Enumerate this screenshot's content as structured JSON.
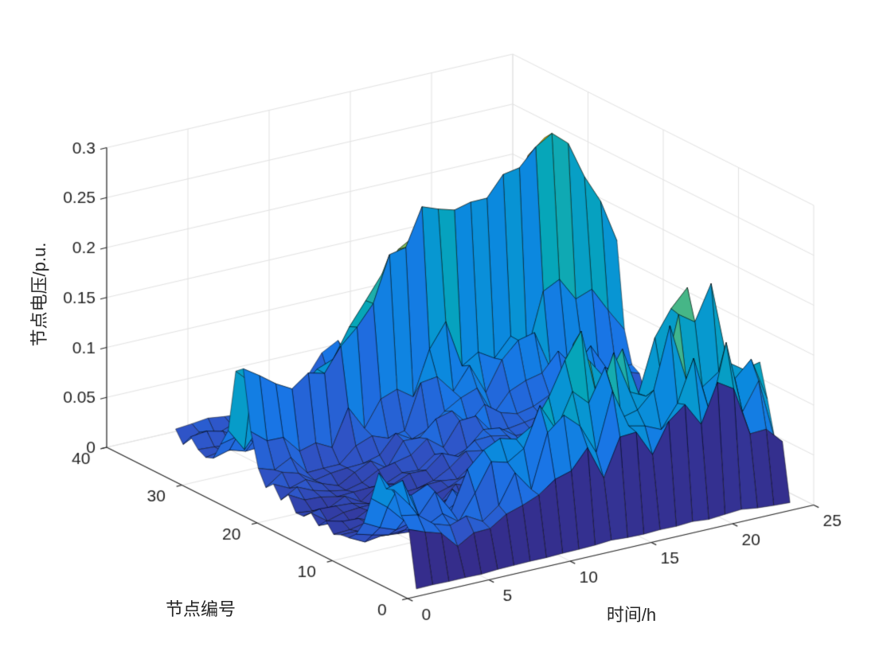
{
  "figure": {
    "background": "#ffffff"
  },
  "chart_data": {
    "type": "surface",
    "note": "MATLAB-style 3D surf mesh: node voltage deviation versus node index and hour of day; parula colormap, black mesh edges, default 3D view",
    "title": "",
    "xlabel": "时间/h",
    "ylabel": "节点编号",
    "zlabel": "节点电压/p.u.",
    "xlim": [
      0,
      25
    ],
    "ylim": [
      0,
      40
    ],
    "zlim": [
      0,
      0.3
    ],
    "x_ticks": [
      0,
      5,
      10,
      15,
      20,
      25
    ],
    "x_tick_labels": [
      "0",
      "5",
      "10",
      "15",
      "20",
      "25"
    ],
    "y_ticks": [
      0,
      10,
      20,
      30,
      40
    ],
    "y_tick_labels": [
      "0",
      "10",
      "20",
      "30",
      "40"
    ],
    "z_ticks": [
      0,
      0.05,
      0.1,
      0.15,
      0.2,
      0.25,
      0.3
    ],
    "z_tick_labels": [
      "0",
      "0.05",
      "0.1",
      "0.15",
      "0.2",
      "0.25",
      "0.3"
    ],
    "hours": [
      1,
      2,
      3,
      4,
      5,
      6,
      7,
      8,
      9,
      10,
      11,
      12,
      13,
      14,
      15,
      16,
      17,
      18,
      19,
      20,
      21,
      22,
      23,
      24
    ],
    "nodes": [
      1,
      2,
      3,
      4,
      5,
      6,
      7,
      8,
      9,
      10,
      11,
      12,
      13,
      14,
      15,
      16,
      17,
      18,
      19,
      20,
      21,
      22,
      23,
      24,
      25,
      26,
      27,
      28,
      29,
      30,
      31,
      32,
      33
    ],
    "hour_profile": [
      0.14,
      0.126,
      0.115,
      0.11,
      0.11,
      0.118,
      0.134,
      0.155,
      0.178,
      0.204,
      0.23,
      0.252,
      0.262,
      0.25,
      0.238,
      0.246,
      0.262,
      0.278,
      0.291,
      0.3,
      0.288,
      0.258,
      0.212,
      0.17
    ],
    "node_amplitude": [
      0.02,
      0.35,
      0.45,
      0.55,
      0.6,
      0.55,
      0.4,
      0.25,
      0.15,
      0.12,
      0.12,
      0.13,
      0.14,
      0.15,
      0.15,
      0.16,
      0.17,
      0.18,
      0.2,
      0.22,
      0.26,
      0.33,
      0.45,
      1.0,
      0.92,
      0.45,
      0.35,
      0.3,
      0.27,
      0.26,
      0.27,
      0.29,
      0.32
    ],
    "z_model": "z[node][hour] = node_amplitude[node] * hour_profile[hour] * jitter(node,hour); peak about 0.30 p.u. at node 24, hour 20",
    "noise": {
      "threshold": 0.7,
      "high_amp_jitter": 0.06,
      "low_amp_jitter": 0.3
    },
    "grid": true,
    "grid_color": "#e2e2e2",
    "axis_color": "#262626",
    "background": "#ffffff",
    "colormap": "parula",
    "colormap_stops": [
      [
        0.0,
        "#352a87"
      ],
      [
        0.1,
        "#2f55c8"
      ],
      [
        0.2,
        "#1b73e6"
      ],
      [
        0.3,
        "#0c87e0"
      ],
      [
        0.4,
        "#0798d0"
      ],
      [
        0.5,
        "#06a6b8"
      ],
      [
        0.6,
        "#29b2a4"
      ],
      [
        0.7,
        "#67ba68"
      ],
      [
        0.8,
        "#acb943"
      ],
      [
        0.9,
        "#e3ba2d"
      ],
      [
        0.97,
        "#f9d71b"
      ],
      [
        1.0,
        "#f9fb0e"
      ]
    ]
  }
}
